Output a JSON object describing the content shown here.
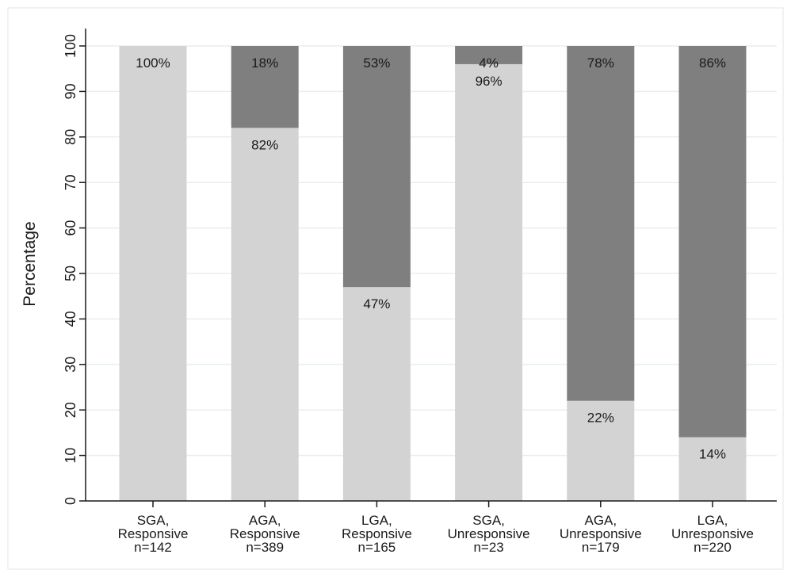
{
  "chart_data": {
    "type": "bar",
    "stacked": true,
    "orientation": "vertical",
    "title": "",
    "xlabel": "",
    "ylabel": "Percentage",
    "ylim": [
      0,
      100
    ],
    "yticks": [
      0,
      10,
      20,
      30,
      40,
      50,
      60,
      70,
      80,
      90,
      100
    ],
    "grid": true,
    "categories": [
      [
        "SGA,",
        "Responsive",
        "n=142"
      ],
      [
        "AGA,",
        "Responsive",
        "n=389"
      ],
      [
        "LGA,",
        "Responsive",
        "n=165"
      ],
      [
        "SGA,",
        "Unresponsive",
        "n=23"
      ],
      [
        "AGA,",
        "Unresponsive",
        "n=179"
      ],
      [
        "LGA,",
        "Unresponsive",
        "n=220"
      ]
    ],
    "series": [
      {
        "values": [
          100,
          82,
          47,
          96,
          22,
          14
        ],
        "labels": [
          "100%",
          "82%",
          "47%",
          "96%",
          "22%",
          "14%"
        ],
        "color": "#d3d3d3"
      },
      {
        "values": [
          0,
          18,
          53,
          4,
          78,
          86
        ],
        "labels": [
          "",
          "18%",
          "53%",
          "4%",
          "78%",
          "86%"
        ],
        "color": "#7f7f7f"
      }
    ],
    "colors": {
      "grid": "#e8eef0",
      "axis": "#1a1a1a",
      "frame": "#e6e6e6"
    }
  }
}
